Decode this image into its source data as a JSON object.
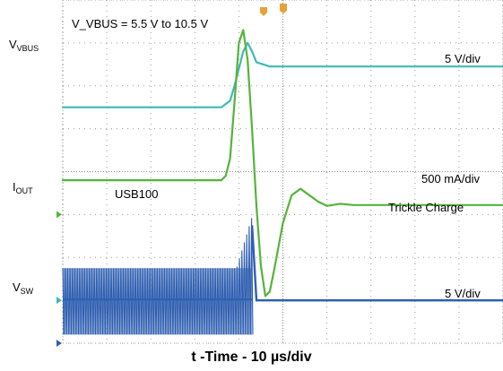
{
  "chart_data": {
    "type": "line",
    "xlabel": "t -Time - 10 µs/div",
    "divisions": {
      "x": 10,
      "y": 8
    },
    "annotation": "V_VBUS = 5.5 V to 10.5 V",
    "series": [
      {
        "name": "V_VBUS",
        "sub": "VBUS",
        "scale": "5 V/div",
        "color": "#3fb9b9",
        "ground_div": 1.0,
        "x": [
          0,
          3.6,
          3.8,
          3.9,
          4.0,
          4.1,
          4.2,
          4.3,
          4.4,
          4.55,
          4.7,
          5.0,
          10
        ],
        "y": [
          5.5,
          5.5,
          5.65,
          6.0,
          6.4,
          6.8,
          7.0,
          6.8,
          6.55,
          6.5,
          6.45,
          6.45,
          6.45
        ]
      },
      {
        "name": "I_OUT",
        "sub": "OUT",
        "scale": "500 mA/div",
        "color": "#55b43a",
        "ground_div": 3.0,
        "event_label": "USB100",
        "tail_label": "Trickle Charge",
        "x": [
          0,
          3.6,
          3.7,
          3.8,
          3.9,
          4.0,
          4.1,
          4.2,
          4.3,
          4.4,
          4.5,
          4.6,
          4.7,
          4.8,
          5.0,
          5.2,
          5.4,
          5.6,
          5.8,
          6.0,
          6.3,
          6.6,
          10
        ],
        "y": [
          3.8,
          3.8,
          3.9,
          4.3,
          5.6,
          7.0,
          7.3,
          6.6,
          5.0,
          3.2,
          1.8,
          1.1,
          1.2,
          1.7,
          2.8,
          3.45,
          3.6,
          3.45,
          3.3,
          3.2,
          3.25,
          3.22,
          3.22
        ]
      },
      {
        "name": "V_SW",
        "sub": "SW",
        "scale": "5 V/div",
        "color": "#2f5fb0",
        "ground_div": 0.0,
        "switching_until": 4.3,
        "high": 1.75,
        "low": 0.2,
        "settled": 1.0
      }
    ]
  }
}
